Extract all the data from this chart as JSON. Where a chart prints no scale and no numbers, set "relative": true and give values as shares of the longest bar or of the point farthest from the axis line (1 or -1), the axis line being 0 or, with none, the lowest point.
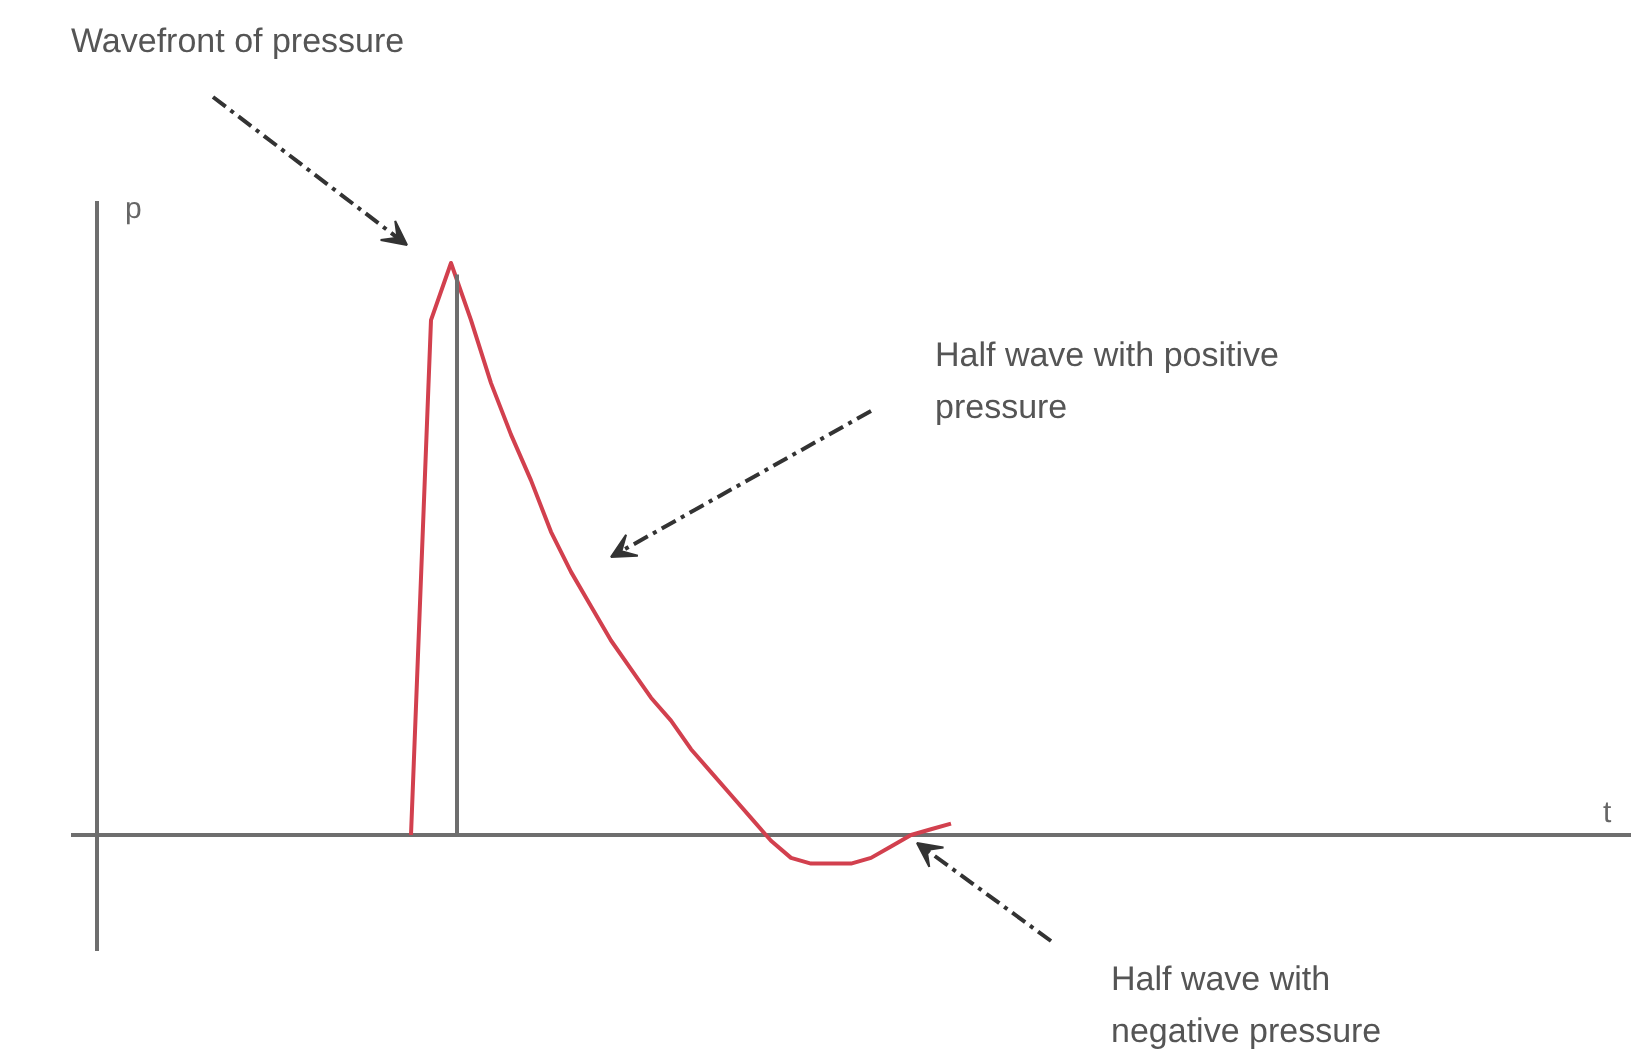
{
  "chart_data": {
    "type": "line",
    "relative": true,
    "categories": [
      null,
      null,
      null,
      null,
      null,
      null,
      null,
      null,
      null,
      null,
      null,
      null,
      null,
      null,
      null,
      null,
      null,
      null,
      null,
      null,
      null,
      null,
      null,
      null,
      null,
      null,
      null,
      null
    ],
    "series": [
      {
        "color": "#d2404e",
        "values": [
          0,
          0.9,
          1.0,
          0.9,
          0.79,
          0.7,
          0.62,
          0.53,
          0.46,
          0.4,
          0.34,
          0.29,
          0.24,
          0.2,
          0.15,
          0.11,
          0.07,
          0.03,
          -0.01,
          -0.04,
          -0.05,
          -0.05,
          -0.05,
          -0.04,
          -0.02,
          0,
          0.01,
          0.02
        ]
      }
    ],
    "annotations": [
      "p",
      "t",
      "Wavefront of pressure",
      "Half wave with positive\npressure",
      "Half wave with\nnegative pressure"
    ]
  }
}
